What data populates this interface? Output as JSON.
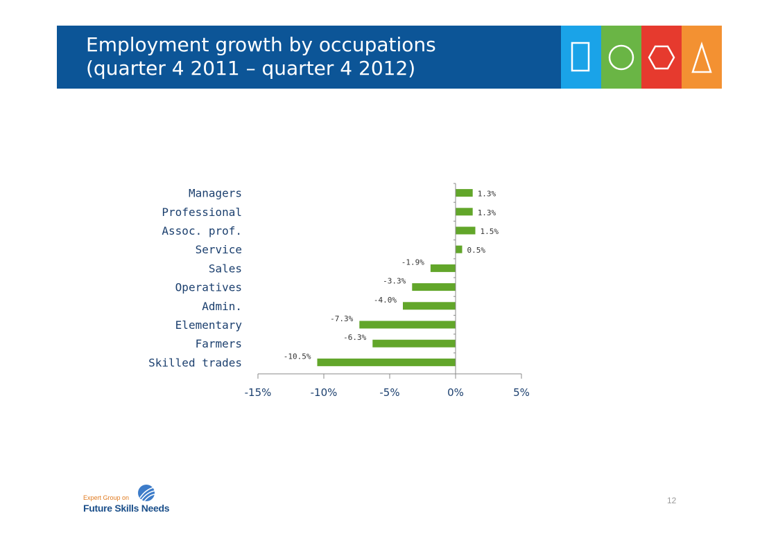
{
  "slide": {
    "title_line1": "Employment growth by occupations",
    "title_line2": "(quarter 4 2011 – quarter 4 2012)",
    "page_number": "12",
    "logo": {
      "line1": "Expert Group on",
      "line2": "Future Skills Needs"
    }
  },
  "colors": {
    "banner": "#0c5597",
    "tiles": [
      "#1aa3e8",
      "#6ab545",
      "#e63a2e",
      "#f39132"
    ],
    "bar": "#62a62a",
    "axis_label": "#1b3f6e"
  },
  "tile_icons": [
    "square-icon",
    "circle-icon",
    "hexagon-icon",
    "triangle-icon"
  ],
  "chart_data": {
    "type": "bar",
    "orientation": "horizontal",
    "categories": [
      "Managers",
      "Professional",
      "Assoc. prof.",
      "Service",
      "Sales",
      "Operatives",
      "Admin.",
      "Elementary",
      "Farmers",
      "Skilled trades"
    ],
    "values": [
      1.3,
      1.3,
      1.5,
      0.5,
      -1.9,
      -3.3,
      -4.0,
      -7.3,
      -6.3,
      -10.5
    ],
    "data_labels": [
      "1.3%",
      "1.3%",
      "1.5%",
      "0.5%",
      "-1.9%",
      "-3.3%",
      "-4.0%",
      "-7.3%",
      "-6.3%",
      "-10.5%"
    ],
    "xlim": [
      -15,
      5
    ],
    "xticks": [
      -15,
      -10,
      -5,
      0,
      5
    ],
    "xtick_labels": [
      "-15%",
      "-10%",
      "-5%",
      "0%",
      "5%"
    ],
    "grid": false,
    "legend": "none"
  }
}
